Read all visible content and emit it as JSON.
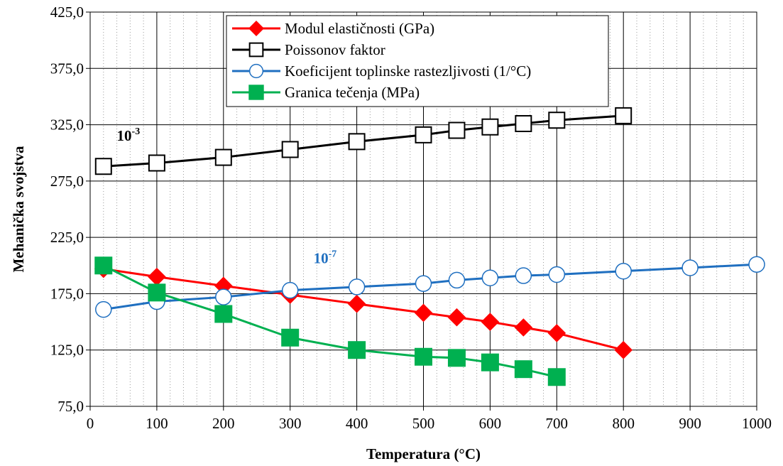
{
  "chart_data": {
    "type": "line",
    "title": "",
    "xlabel": "Temperatura (°C)",
    "ylabel": "Mehanička svojstva",
    "xlim": [
      0,
      1000
    ],
    "ylim": [
      75,
      425
    ],
    "x_ticks": [
      0,
      100,
      200,
      300,
      400,
      500,
      600,
      700,
      800,
      900,
      1000
    ],
    "y_ticks": [
      75,
      125,
      175,
      225,
      275,
      325,
      375,
      425
    ],
    "x_tick_labels": [
      "0",
      "100",
      "200",
      "300",
      "400",
      "500",
      "600",
      "700",
      "800",
      "900",
      "1000"
    ],
    "y_tick_labels": [
      "75,0",
      "125,0",
      "175,0",
      "225,0",
      "275,0",
      "325,0",
      "375,0",
      "425,0"
    ],
    "grid": {
      "major": true,
      "minor_x_dotted": true
    },
    "legend_position": "top-center",
    "series": [
      {
        "name": "Modul elastičnosti (GPa)",
        "color": "#ff0000",
        "marker": "diamond",
        "x": [
          20,
          100,
          200,
          300,
          400,
          500,
          550,
          600,
          650,
          700,
          800
        ],
        "y": [
          197,
          190,
          182,
          174,
          166,
          158,
          154,
          150,
          145,
          140,
          125
        ]
      },
      {
        "name": "Poissonov faktor",
        "color": "#000000",
        "marker": "square-open",
        "x": [
          20,
          100,
          200,
          300,
          400,
          500,
          550,
          600,
          650,
          700,
          800
        ],
        "y": [
          288,
          291,
          296,
          303,
          310,
          316,
          320,
          323,
          326,
          329,
          333
        ]
      },
      {
        "name": "Koeficijent toplinske rastezljivosti (1/°C)",
        "color": "#1f6fc0",
        "marker": "circle-open",
        "x": [
          20,
          100,
          200,
          300,
          400,
          500,
          550,
          600,
          650,
          700,
          800,
          900,
          1000
        ],
        "y": [
          161,
          168,
          172,
          178,
          181,
          184,
          187,
          189,
          191,
          192,
          195,
          198,
          201
        ]
      },
      {
        "name": "Granica tečenja (MPa)",
        "color": "#00b050",
        "marker": "square",
        "x": [
          20,
          100,
          200,
          300,
          400,
          500,
          550,
          600,
          650,
          700
        ],
        "y": [
          200,
          176,
          157,
          136,
          125,
          119,
          118,
          114,
          108,
          101
        ]
      }
    ],
    "annotations": [
      {
        "base": "10",
        "exp": "-3",
        "color": "#000000",
        "x": 40,
        "y": 311
      },
      {
        "base": "10",
        "exp": "-7",
        "color": "#1f6fc0",
        "x": 335,
        "y": 202
      }
    ]
  }
}
